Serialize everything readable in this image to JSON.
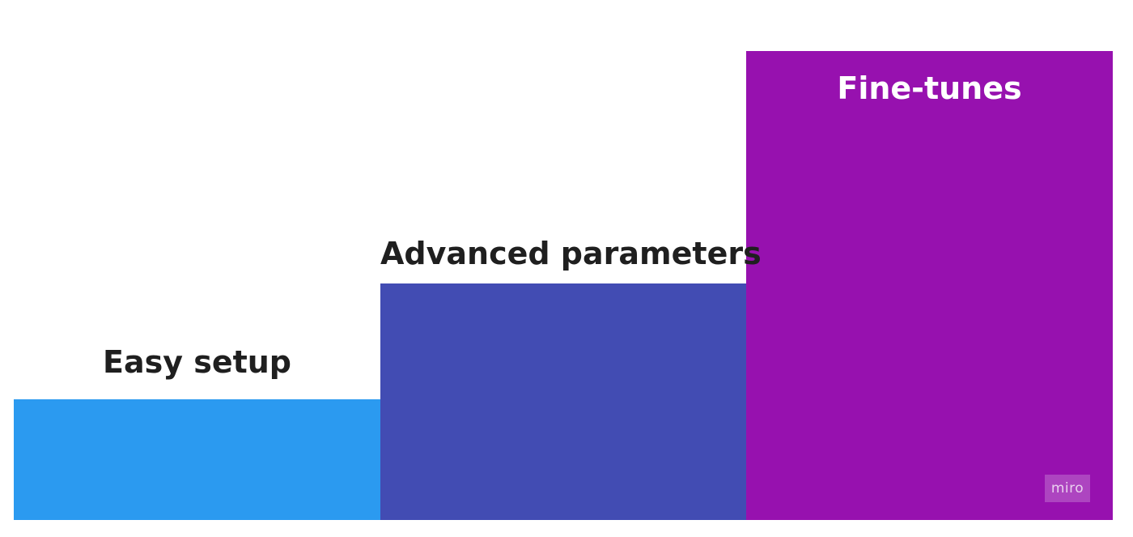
{
  "steps": [
    {
      "label": "Easy setup",
      "level": 1,
      "color": "#2b9af0",
      "label_color": "#1f1f1f"
    },
    {
      "label": "Advanced parameters",
      "level": 2,
      "color": "#424cb3",
      "label_color": "#1f1f1f"
    },
    {
      "label": "Fine-tunes",
      "level": 3,
      "color": "#9711af",
      "label_color": "#ffffff"
    }
  ],
  "watermark": {
    "text": "miro"
  }
}
